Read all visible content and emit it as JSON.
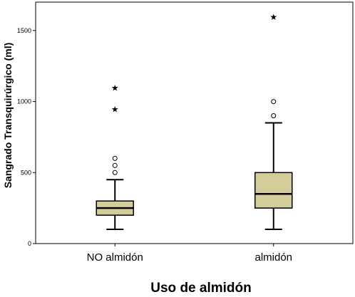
{
  "chart_data": {
    "type": "box",
    "title": "",
    "xlabel": "Uso de almidón",
    "ylabel": "Sangrado Transquirúrgico (ml)",
    "ylim": [
      0,
      1700
    ],
    "yticks": [
      0,
      500,
      1000,
      1500
    ],
    "grid": false,
    "box_color": "#d4cc99",
    "categories": [
      "NO almidón",
      "almidón"
    ],
    "boxes": [
      {
        "category": "NO almidón",
        "whisker_low": 100,
        "q1": 200,
        "median": 250,
        "q3": 300,
        "whisker_high": 450,
        "outliers": [
          500,
          550,
          600
        ],
        "extremes": [
          950,
          1100
        ]
      },
      {
        "category": "almidón",
        "whisker_low": 100,
        "q1": 250,
        "median": 350,
        "q3": 500,
        "whisker_high": 850,
        "outliers": [
          900,
          1000
        ],
        "extremes": [
          1600
        ]
      }
    ]
  }
}
